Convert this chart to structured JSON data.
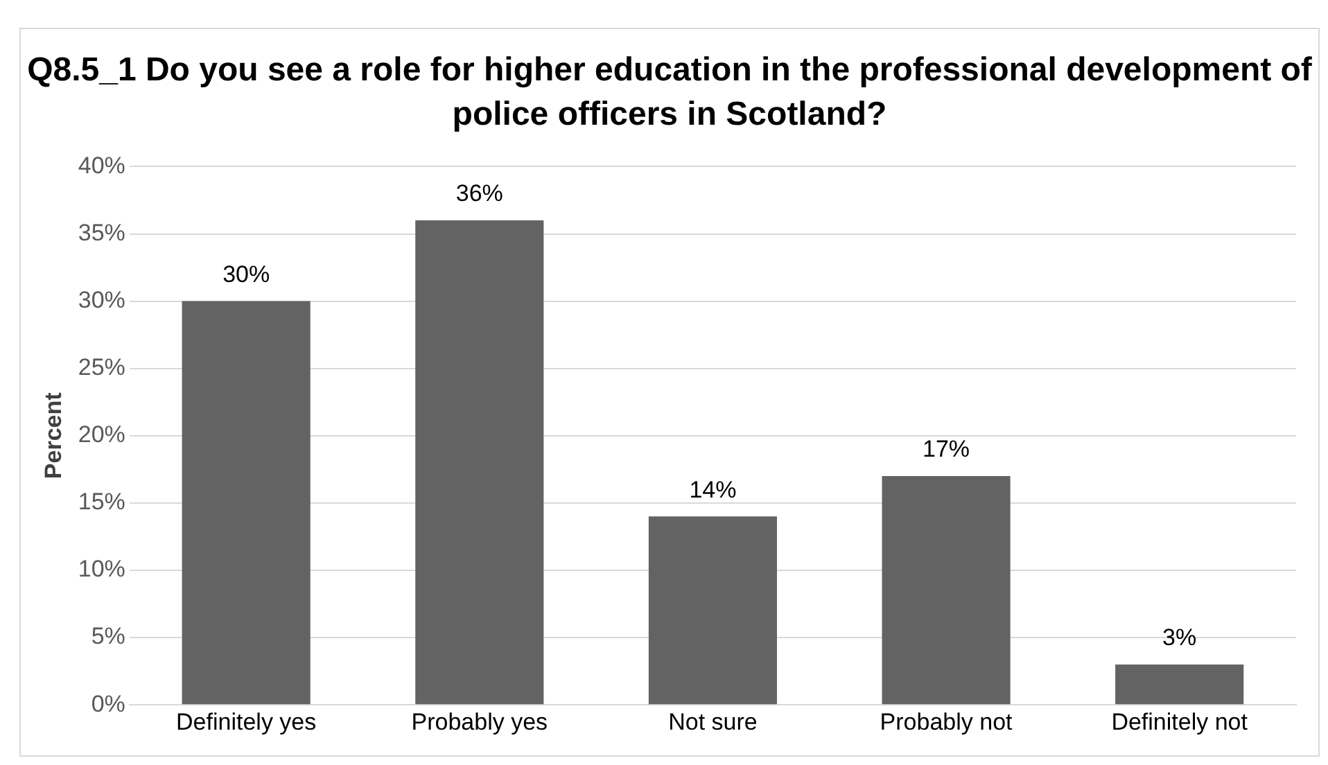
{
  "chart_data": {
    "type": "bar",
    "title": "Q8.5_1 Do you see a role for higher education in the professional development of police officers in Scotland?",
    "ylabel": "Percent",
    "categories": [
      "Definitely yes",
      "Probably yes",
      "Not sure",
      "Probably not",
      "Definitely not"
    ],
    "values": [
      30,
      36,
      14,
      17,
      3
    ],
    "value_labels": [
      "30%",
      "36%",
      "14%",
      "17%",
      "3%"
    ],
    "color": "#636363",
    "ylim": [
      0,
      40
    ],
    "yticks": [
      {
        "value": 0,
        "label": "0%"
      },
      {
        "value": 5,
        "label": "5%"
      },
      {
        "value": 10,
        "label": "10%"
      },
      {
        "value": 15,
        "label": "15%"
      },
      {
        "value": 20,
        "label": "20%"
      },
      {
        "value": 25,
        "label": "25%"
      },
      {
        "value": 30,
        "label": "30%"
      },
      {
        "value": 35,
        "label": "35%"
      },
      {
        "value": 40,
        "label": "40%"
      }
    ],
    "grid": "y",
    "legend": false
  }
}
